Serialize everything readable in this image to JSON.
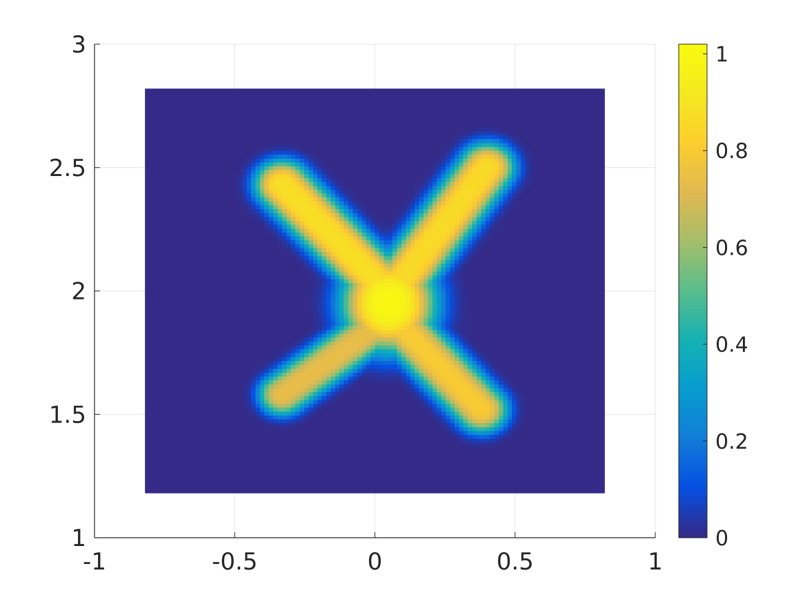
{
  "chart_data": {
    "type": "heatmap",
    "title": "",
    "xlabel": "",
    "ylabel": "",
    "xlim": [
      -1,
      1
    ],
    "ylim": [
      1,
      3
    ],
    "x_ticks": [
      "-1",
      "-0.5",
      "0",
      "0.5",
      "1"
    ],
    "y_ticks": [
      "1",
      "1.5",
      "2",
      "2.5",
      "3"
    ],
    "grid": true,
    "data_extent": {
      "x": [
        -0.82,
        0.82
      ],
      "y": [
        1.18,
        2.82
      ]
    },
    "background_value": 0,
    "colormap": "parula",
    "colorbar": {
      "location": "right",
      "range": [
        0,
        1.02
      ],
      "ticks": [
        "0",
        "0.2",
        "0.4",
        "0.6",
        "0.8",
        "1"
      ]
    },
    "field_components": [
      {
        "shape": "blob",
        "center": [
          0.05,
          1.95
        ],
        "radius": [
          0.17,
          0.2
        ],
        "peak": 1.0
      },
      {
        "shape": "arm",
        "from": [
          0.0,
          2.05
        ],
        "to": [
          -0.33,
          2.43
        ],
        "width": 0.1,
        "peak": 0.88
      },
      {
        "shape": "arm",
        "from": [
          0.1,
          2.05
        ],
        "to": [
          0.4,
          2.5
        ],
        "width": 0.1,
        "peak": 0.86
      },
      {
        "shape": "arm",
        "from": [
          0.0,
          1.85
        ],
        "to": [
          -0.33,
          1.58
        ],
        "width": 0.085,
        "peak": 0.74
      },
      {
        "shape": "arm",
        "from": [
          0.1,
          1.85
        ],
        "to": [
          0.38,
          1.52
        ],
        "width": 0.095,
        "peak": 0.8
      },
      {
        "shape": "blob",
        "center": [
          -0.33,
          2.43
        ],
        "radius": [
          0.09,
          0.1
        ],
        "peak": 0.88
      },
      {
        "shape": "blob",
        "center": [
          0.4,
          2.5
        ],
        "radius": [
          0.09,
          0.09
        ],
        "peak": 0.86
      },
      {
        "shape": "blob",
        "center": [
          -0.33,
          1.58
        ],
        "radius": [
          0.07,
          0.07
        ],
        "peak": 0.74
      },
      {
        "shape": "blob",
        "center": [
          0.38,
          1.52
        ],
        "radius": [
          0.08,
          0.07
        ],
        "peak": 0.8
      }
    ]
  }
}
